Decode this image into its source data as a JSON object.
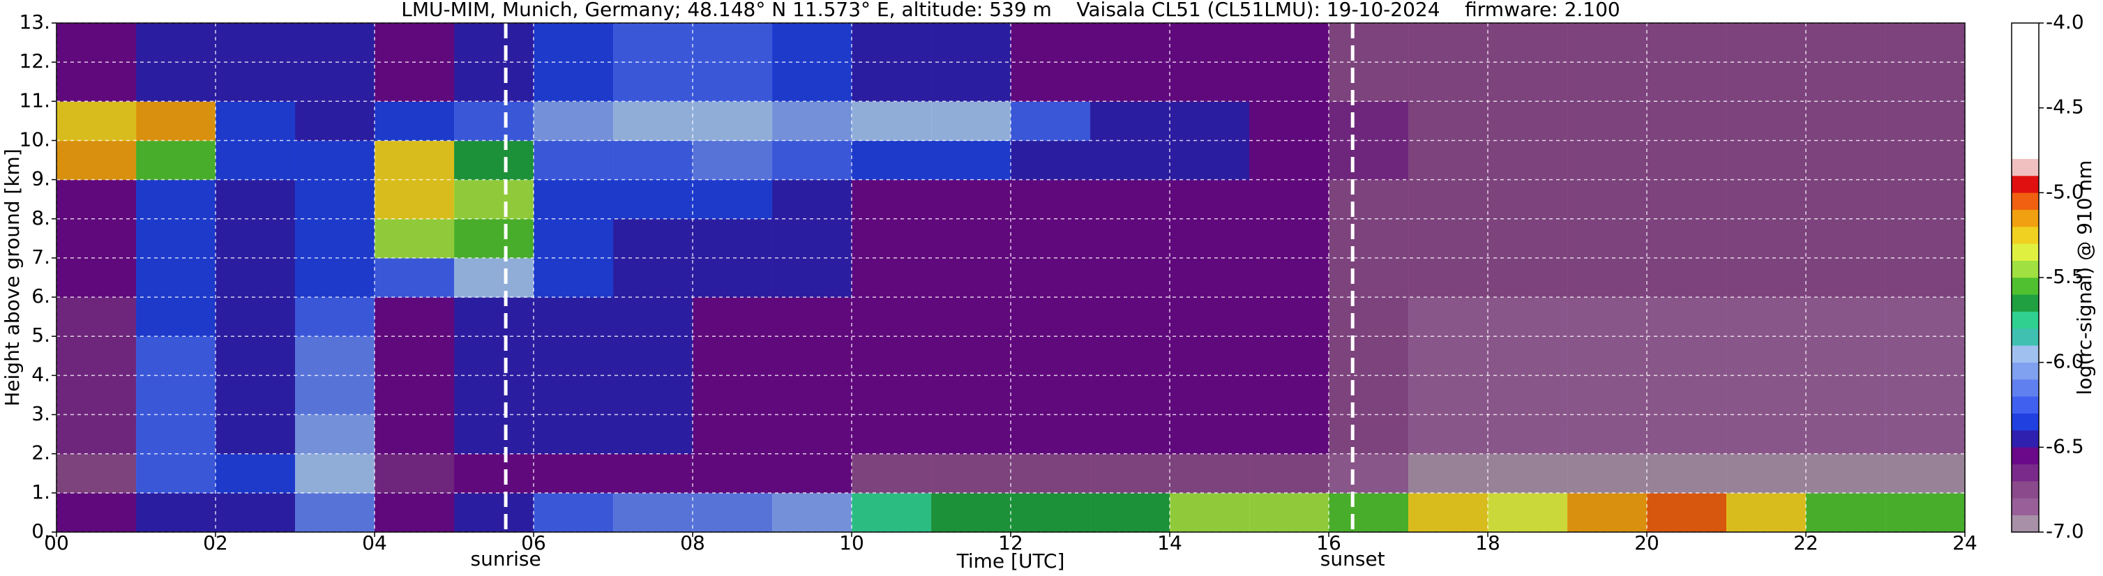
{
  "chart_data": {
    "type": "heatmap",
    "title": "LMU-MIM, Munich, Germany; 48.148° N 11.573° E, altitude: 539 m    Vaisala CL51 (CL51LMU): 19-10-2024    firmware: 2.100",
    "x_label": "Time [UTC]",
    "y_label": "Height above ground [km]",
    "colorbar_label": "log(rc-signal) @ 910 nm",
    "x_edges": [
      0,
      1,
      2,
      3,
      4,
      5,
      6,
      7,
      8,
      9,
      10,
      11,
      12,
      13,
      14,
      15,
      16,
      17,
      18,
      19,
      20,
      21,
      22,
      23,
      24
    ],
    "y_edges": [
      0,
      1,
      2,
      3,
      4,
      5,
      6,
      7,
      8,
      9,
      10,
      11,
      12,
      13
    ],
    "xlim": [
      0,
      24
    ],
    "ylim": [
      0,
      13
    ],
    "xticks": [
      {
        "value": 0,
        "label": "00"
      },
      {
        "value": 2,
        "label": "02"
      },
      {
        "value": 4,
        "label": "04"
      },
      {
        "value": 6,
        "label": "06"
      },
      {
        "value": 8,
        "label": "08"
      },
      {
        "value": 10,
        "label": "10"
      },
      {
        "value": 12,
        "label": "12"
      },
      {
        "value": 14,
        "label": "14"
      },
      {
        "value": 16,
        "label": "16"
      },
      {
        "value": 18,
        "label": "18"
      },
      {
        "value": 20,
        "label": "20"
      },
      {
        "value": 22,
        "label": "22"
      },
      {
        "value": 24,
        "label": "24"
      }
    ],
    "yticks": [
      {
        "value": 0,
        "label": "0."
      },
      {
        "value": 1,
        "label": "1."
      },
      {
        "value": 2,
        "label": "2."
      },
      {
        "value": 3,
        "label": "3."
      },
      {
        "value": 4,
        "label": "4."
      },
      {
        "value": 5,
        "label": "5."
      },
      {
        "value": 6,
        "label": "6."
      },
      {
        "value": 7,
        "label": "7."
      },
      {
        "value": 8,
        "label": "8."
      },
      {
        "value": 9,
        "label": "9."
      },
      {
        "value": 10,
        "label": "10."
      },
      {
        "value": 11,
        "label": "11."
      },
      {
        "value": 12,
        "label": "12."
      },
      {
        "value": 13,
        "label": "13."
      }
    ],
    "clim": [
      -7,
      -4
    ],
    "cticks": [
      {
        "value": -4,
        "label": "-4.0"
      },
      {
        "value": -4.5,
        "label": "-4.5"
      },
      {
        "value": -5,
        "label": "-5.0"
      },
      {
        "value": -5.5,
        "label": "-5.5"
      },
      {
        "value": -6,
        "label": "-6.0"
      },
      {
        "value": -6.5,
        "label": "-6.5"
      },
      {
        "value": -7,
        "label": "-7.0"
      }
    ],
    "levels": [
      -7.0,
      -6.9,
      -6.8,
      -6.7,
      -6.6,
      -6.5,
      -6.4,
      -6.3,
      -6.2,
      -6.1,
      -6.0,
      -5.9,
      -5.8,
      -5.7,
      -5.6,
      -5.5,
      -5.4,
      -5.3,
      -5.2,
      -5.1,
      -5.0,
      -4.9,
      -4.8,
      -4.0
    ],
    "colors": [
      "#a890a8",
      "#985f98",
      "#8b4a8b",
      "#7a2a8a",
      "#6a0a8a",
      "#3020b0",
      "#2040e0",
      "#4060f0",
      "#6080f0",
      "#80a0f0",
      "#a0c0f0",
      "#40c0b0",
      "#30d090",
      "#20a040",
      "#50c030",
      "#a0e040",
      "#e0f040",
      "#f0d020",
      "#f0a010",
      "#f06010",
      "#e01010",
      "#f0c0c0",
      "#ffffff"
    ],
    "grid": true,
    "z": [
      [
        -6.6,
        -6.5,
        -6.5,
        -6.2,
        -6.6,
        -6.5,
        -6.3,
        -6.2,
        -6.2,
        -6.1,
        -5.8,
        -5.7,
        -5.7,
        -5.7,
        -5.5,
        -5.5,
        -5.6,
        -5.3,
        -5.4,
        -5.2,
        -5.1,
        -5.3,
        -5.6,
        -5.6
      ],
      [
        -6.8,
        -6.3,
        -6.4,
        -6.0,
        -6.7,
        -6.6,
        -6.6,
        -6.6,
        -6.6,
        -6.6,
        -6.8,
        -6.8,
        -6.8,
        -6.8,
        -6.8,
        -6.8,
        -6.9,
        -7.0,
        -7.0,
        -7.0,
        -7.0,
        -7.0,
        -7.0,
        -7.0
      ],
      [
        -6.7,
        -6.3,
        -6.5,
        -6.1,
        -6.6,
        -6.5,
        -6.5,
        -6.5,
        -6.6,
        -6.6,
        -6.6,
        -6.6,
        -6.6,
        -6.6,
        -6.6,
        -6.6,
        -6.8,
        -6.9,
        -6.9,
        -6.9,
        -6.9,
        -6.9,
        -6.9,
        -6.9
      ],
      [
        -6.7,
        -6.3,
        -6.5,
        -6.2,
        -6.6,
        -6.5,
        -6.5,
        -6.5,
        -6.6,
        -6.6,
        -6.6,
        -6.6,
        -6.6,
        -6.6,
        -6.6,
        -6.6,
        -6.8,
        -6.9,
        -6.9,
        -6.9,
        -6.9,
        -6.9,
        -6.9,
        -6.9
      ],
      [
        -6.7,
        -6.3,
        -6.5,
        -6.2,
        -6.6,
        -6.5,
        -6.5,
        -6.5,
        -6.6,
        -6.6,
        -6.6,
        -6.6,
        -6.6,
        -6.6,
        -6.6,
        -6.6,
        -6.8,
        -6.9,
        -6.9,
        -6.9,
        -6.9,
        -6.9,
        -6.9,
        -6.9
      ],
      [
        -6.7,
        -6.4,
        -6.5,
        -6.3,
        -6.6,
        -6.5,
        -6.5,
        -6.5,
        -6.6,
        -6.6,
        -6.6,
        -6.6,
        -6.6,
        -6.6,
        -6.6,
        -6.6,
        -6.8,
        -6.9,
        -6.9,
        -6.9,
        -6.9,
        -6.9,
        -6.9,
        -6.9
      ],
      [
        -6.6,
        -6.4,
        -6.5,
        -6.4,
        -6.3,
        -6.0,
        -6.4,
        -6.5,
        -6.5,
        -6.5,
        -6.6,
        -6.6,
        -6.6,
        -6.6,
        -6.6,
        -6.6,
        -6.8,
        -6.8,
        -6.8,
        -6.8,
        -6.8,
        -6.8,
        -6.8,
        -6.8
      ],
      [
        -6.6,
        -6.4,
        -6.5,
        -6.4,
        -5.5,
        -5.6,
        -6.4,
        -6.5,
        -6.5,
        -6.5,
        -6.6,
        -6.6,
        -6.6,
        -6.6,
        -6.6,
        -6.6,
        -6.8,
        -6.8,
        -6.8,
        -6.8,
        -6.8,
        -6.8,
        -6.8,
        -6.8
      ],
      [
        -6.6,
        -6.4,
        -6.5,
        -6.4,
        -5.3,
        -5.5,
        -6.4,
        -6.4,
        -6.4,
        -6.5,
        -6.6,
        -6.6,
        -6.6,
        -6.6,
        -6.6,
        -6.6,
        -6.8,
        -6.8,
        -6.8,
        -6.8,
        -6.8,
        -6.8,
        -6.8,
        -6.8
      ],
      [
        -5.2,
        -5.6,
        -6.4,
        -6.4,
        -5.3,
        -5.7,
        -6.3,
        -6.3,
        -6.2,
        -6.3,
        -6.4,
        -6.4,
        -6.5,
        -6.5,
        -6.5,
        -6.6,
        -6.7,
        -6.8,
        -6.8,
        -6.8,
        -6.8,
        -6.8,
        -6.8,
        -6.8
      ],
      [
        -5.3,
        -5.2,
        -6.4,
        -6.5,
        -6.4,
        -6.3,
        -6.1,
        -6.0,
        -6.0,
        -6.1,
        -6.0,
        -6.0,
        -6.3,
        -6.5,
        -6.5,
        -6.6,
        -6.7,
        -6.8,
        -6.8,
        -6.8,
        -6.8,
        -6.8,
        -6.8,
        -6.8
      ],
      [
        -6.6,
        -6.5,
        -6.5,
        -6.5,
        -6.6,
        -6.5,
        -6.4,
        -6.3,
        -6.3,
        -6.4,
        -6.5,
        -6.5,
        -6.6,
        -6.6,
        -6.6,
        -6.6,
        -6.8,
        -6.8,
        -6.8,
        -6.8,
        -6.8,
        -6.8,
        -6.8,
        -6.8
      ],
      [
        -6.6,
        -6.5,
        -6.5,
        -6.5,
        -6.6,
        -6.5,
        -6.4,
        -6.3,
        -6.3,
        -6.4,
        -6.5,
        -6.5,
        -6.6,
        -6.6,
        -6.6,
        -6.6,
        -6.8,
        -6.8,
        -6.8,
        -6.8,
        -6.8,
        -6.8,
        -6.8,
        -6.8
      ]
    ],
    "annotations": [
      {
        "text": "sunrise",
        "x": 5.65
      },
      {
        "text": "sunset",
        "x": 16.3
      }
    ]
  }
}
